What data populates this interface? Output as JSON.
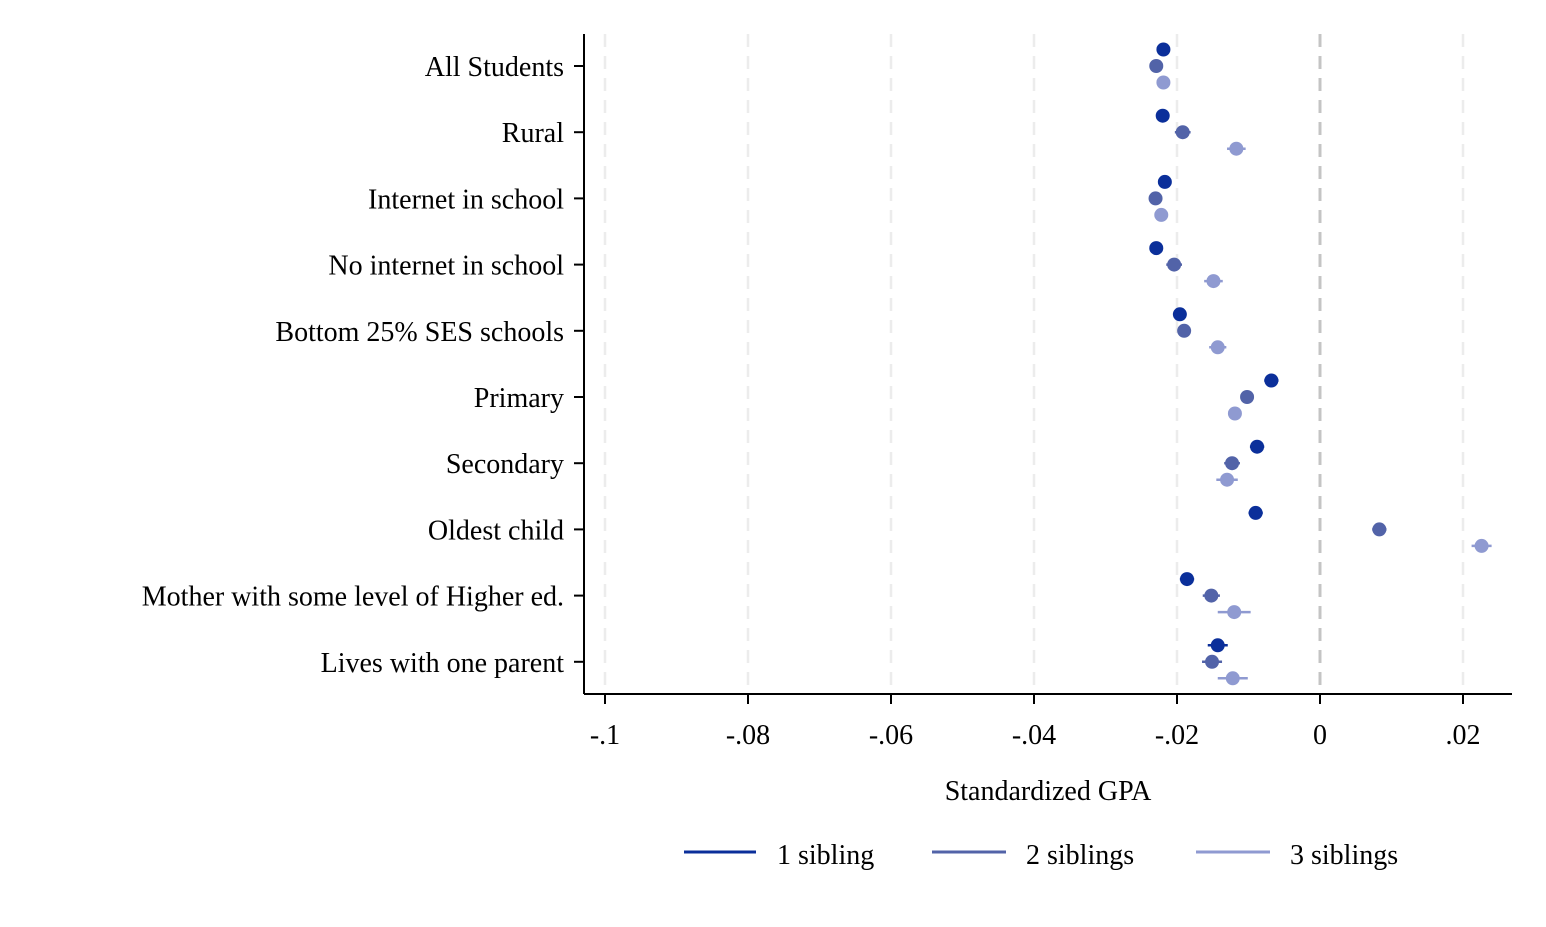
{
  "chart_data": {
    "type": "scatter",
    "xlabel": "Standardized GPA",
    "ylabel": "",
    "xlim": [
      -0.103,
      0.027
    ],
    "xticks": [
      -0.1,
      -0.08,
      -0.06,
      -0.04,
      -0.02,
      0,
      0.02
    ],
    "xtick_labels": [
      "-.1",
      "-.08",
      "-.06",
      "-.04",
      "-.02",
      "0",
      ".02"
    ],
    "grid": "vertical dashed",
    "reference_line": 0,
    "legend_position": "bottom",
    "categories": [
      "All Students",
      "Rural",
      "Internet in school",
      "No internet in school",
      "Bottom 25% SES schools",
      "Primary",
      "Secondary",
      "Oldest child",
      "Mother with some level of Higher ed.",
      "Lives with one parent"
    ],
    "series": [
      {
        "name": "1 sibling",
        "color": "#0b2f9a",
        "values": [
          -0.0219,
          -0.022,
          -0.0217,
          -0.0229,
          -0.0196,
          -0.0068,
          -0.0088,
          -0.009,
          -0.0186,
          -0.0143
        ],
        "ci": [
          [
            -0.0227,
            -0.0211
          ],
          [
            -0.0228,
            -0.0212
          ],
          [
            -0.0225,
            -0.0209
          ],
          [
            -0.0237,
            -0.0221
          ],
          [
            -0.0203,
            -0.0189
          ],
          [
            -0.0078,
            -0.0058
          ],
          [
            -0.0098,
            -0.0078
          ],
          [
            -0.01,
            -0.008
          ],
          [
            -0.0196,
            -0.0176
          ],
          [
            -0.0157,
            -0.0129
          ]
        ]
      },
      {
        "name": "2 siblings",
        "color": "#5263a8",
        "values": [
          -0.0229,
          -0.0192,
          -0.023,
          -0.0204,
          -0.019,
          -0.0102,
          -0.0123,
          0.0083,
          -0.0152,
          -0.0151
        ],
        "ci": [
          [
            -0.0237,
            -0.0221
          ],
          [
            -0.0203,
            -0.0181
          ],
          [
            -0.0239,
            -0.0221
          ],
          [
            -0.0215,
            -0.0193
          ],
          [
            -0.0199,
            -0.0181
          ],
          [
            -0.0111,
            -0.0093
          ],
          [
            -0.0134,
            -0.0112
          ],
          [
            0.0073,
            0.0093
          ],
          [
            -0.0164,
            -0.014
          ],
          [
            -0.0165,
            -0.0137
          ]
        ]
      },
      {
        "name": "3 siblings",
        "color": "#8f9ad1",
        "values": [
          -0.0219,
          -0.0117,
          -0.0222,
          -0.0149,
          -0.0143,
          -0.0119,
          -0.013,
          0.0226,
          -0.012,
          -0.0122
        ],
        "ci": [
          [
            -0.0227,
            -0.0211
          ],
          [
            -0.013,
            -0.0104
          ],
          [
            -0.023,
            -0.0214
          ],
          [
            -0.0162,
            -0.0136
          ],
          [
            -0.0155,
            -0.0131
          ],
          [
            -0.0128,
            -0.011
          ],
          [
            -0.0145,
            -0.0115
          ],
          [
            0.0212,
            0.024
          ],
          [
            -0.0143,
            -0.0097
          ],
          [
            -0.0143,
            -0.0101
          ]
        ]
      }
    ]
  }
}
